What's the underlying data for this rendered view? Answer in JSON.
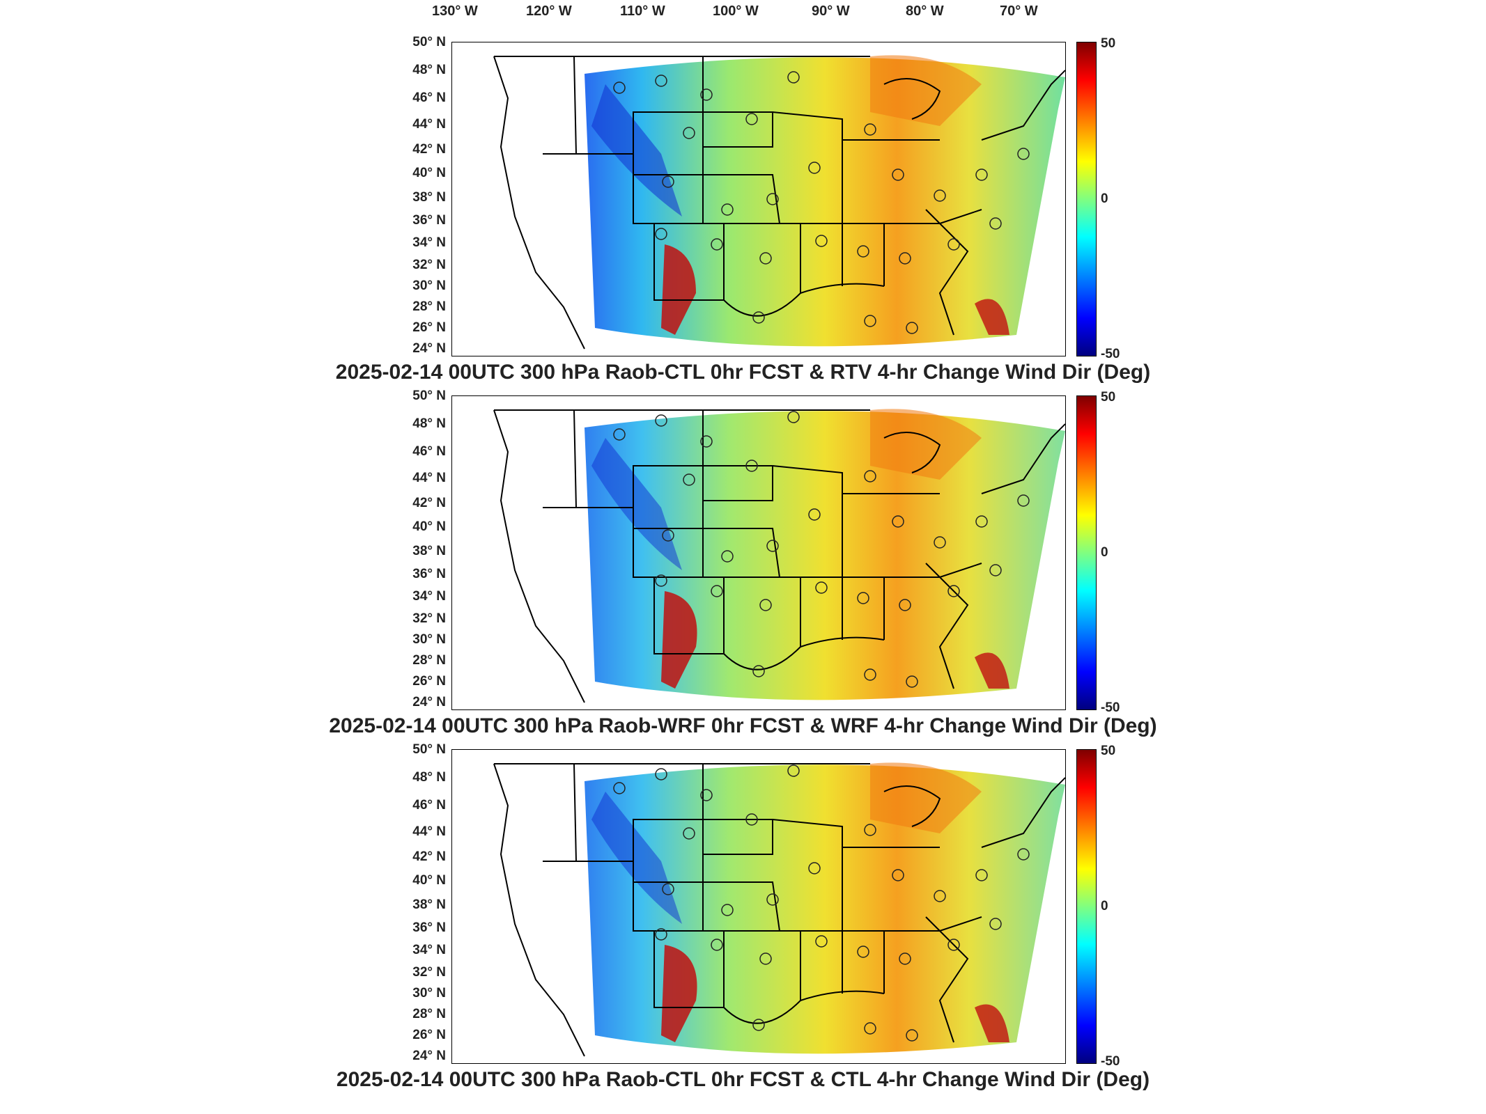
{
  "lon_labels": [
    "130° W",
    "120° W",
    "110° W",
    "100° W",
    "90° W",
    "80° W",
    "70° W"
  ],
  "lat_labels": [
    "50° N",
    "48° N",
    "46° N",
    "44° N",
    "42° N",
    "40° N",
    "38° N",
    "36° N",
    "34° N",
    "32° N",
    "30° N",
    "28° N",
    "26° N",
    "24° N"
  ],
  "colorbar": {
    "max": "50",
    "mid": "0",
    "min": "-50",
    "colors": [
      "#7f0000",
      "#ff0000",
      "#ff8000",
      "#ffff00",
      "#80ff80",
      "#00ffff",
      "#0080ff",
      "#0000ff",
      "#00007f"
    ]
  },
  "panels": [
    {
      "title": "2025-02-14 00UTC 300 hPa Raob-CTL 0hr FCST & RTV 4-hr Change Wind Dir (Deg)"
    },
    {
      "title": "2025-02-14 00UTC 300 hPa Raob-WRF 0hr FCST & WRF 4-hr Change Wind Dir (Deg)"
    },
    {
      "title": "2025-02-14 00UTC 300 hPa Raob-CTL 0hr FCST & CTL 4-hr Change Wind Dir (Deg)"
    }
  ]
}
